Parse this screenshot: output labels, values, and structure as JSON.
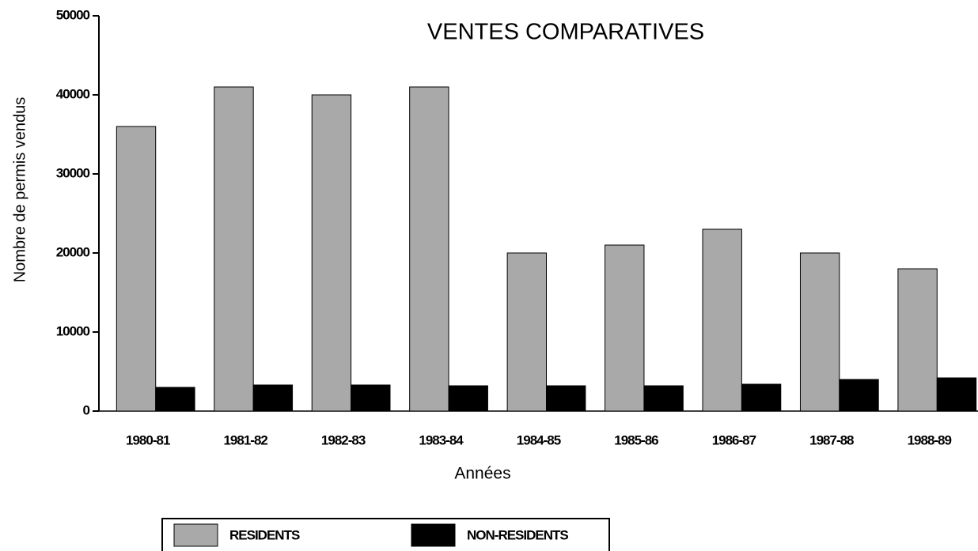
{
  "chart_data": {
    "type": "bar",
    "title": "VENTES COMPARATIVES",
    "x_label": "Années",
    "y_label": "Nombre de permis vendus",
    "categories": [
      "1980-81",
      "1981-82",
      "1982-83",
      "1983-84",
      "1984-85",
      "1985-86",
      "1986-87",
      "1987-88",
      "1988-89"
    ],
    "series": [
      {
        "name": "RESIDENTS",
        "color": "#a9a9a9",
        "values": [
          36000,
          41000,
          40000,
          41000,
          20000,
          21000,
          23000,
          20000,
          18000
        ]
      },
      {
        "name": "NON-RESIDENTS",
        "color": "#000000",
        "values": [
          3000,
          3300,
          3300,
          3200,
          3200,
          3200,
          3400,
          4000,
          4200
        ]
      }
    ],
    "ylim": [
      0,
      50000
    ],
    "yticks": [
      0,
      10000,
      20000,
      30000,
      40000,
      50000
    ],
    "grid": false
  }
}
